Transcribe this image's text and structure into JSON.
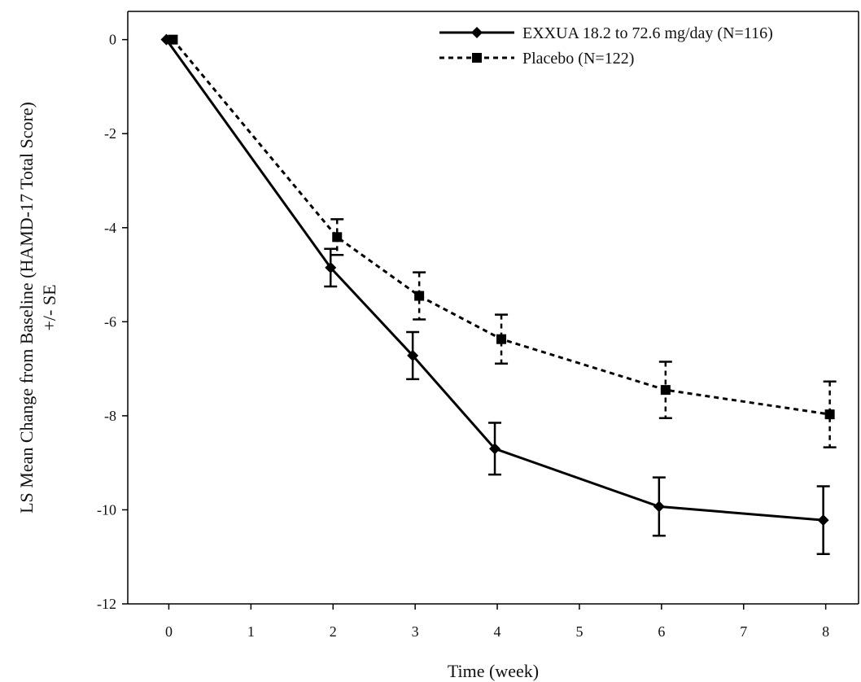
{
  "chart_data": {
    "type": "line",
    "xlabel": "Time (week)",
    "ylabel": [
      "LS Mean Change from Baseline (HAMD-17 Total Score)",
      "+/- SE"
    ],
    "xlim": [
      -0.5,
      8.4
    ],
    "ylim": [
      -12,
      0.6
    ],
    "x_ticks": [
      0,
      1,
      2,
      3,
      4,
      5,
      6,
      7,
      8
    ],
    "y_ticks": [
      0,
      -2,
      -4,
      -6,
      -8,
      -10,
      -12
    ],
    "grid": false,
    "legend_position": "top-right",
    "series": [
      {
        "name": "EXXUA 18.2 to 72.6 mg/day (N=116)",
        "style": "solid",
        "marker": "diamond",
        "color": "#000000",
        "x": [
          0,
          2,
          3,
          4,
          6,
          8
        ],
        "y": [
          0,
          -4.85,
          -6.72,
          -8.7,
          -9.93,
          -10.22
        ],
        "se": [
          0,
          0.4,
          0.5,
          0.55,
          0.62,
          0.72
        ]
      },
      {
        "name": "Placebo (N=122)",
        "style": "dotted",
        "marker": "square",
        "color": "#000000",
        "x": [
          0,
          2,
          3,
          4,
          6,
          8
        ],
        "y": [
          0,
          -4.2,
          -5.45,
          -6.37,
          -7.45,
          -7.97
        ],
        "se": [
          0,
          0.38,
          0.5,
          0.52,
          0.6,
          0.7
        ]
      }
    ]
  }
}
